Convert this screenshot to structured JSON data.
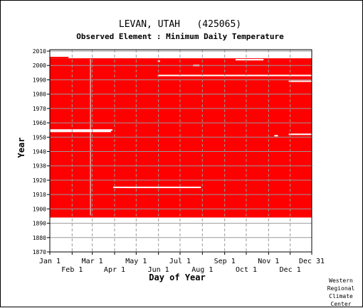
{
  "chart_data": {
    "type": "heatmap",
    "title": "LEVAN, UTAH   (425065)",
    "subtitle": "Observed Element : Minimum Daily Temperature",
    "xlabel": "Day of Year",
    "ylabel": "Year",
    "xlim": [
      1,
      365
    ],
    "ylim": [
      1870,
      2011
    ],
    "y_ticks": [
      1870,
      1880,
      1890,
      1900,
      1910,
      1920,
      1930,
      1940,
      1950,
      1960,
      1970,
      1980,
      1990,
      2000,
      2010
    ],
    "x_ticks_top": [
      {
        "label": "Jan 1",
        "day": 1
      },
      {
        "label": "Mar 1",
        "day": 60
      },
      {
        "label": "May 1",
        "day": 121
      },
      {
        "label": "Jul 1",
        "day": 182
      },
      {
        "label": "Sep 1",
        "day": 244
      },
      {
        "label": "Nov 1",
        "day": 305
      },
      {
        "label": "Dec 31",
        "day": 365
      }
    ],
    "x_ticks_bottom": [
      {
        "label": "Feb 1",
        "day": 32
      },
      {
        "label": "Apr 1",
        "day": 91
      },
      {
        "label": "Jun 1",
        "day": 152
      },
      {
        "label": "Aug 1",
        "day": 213
      },
      {
        "label": "Oct 1",
        "day": 274
      },
      {
        "label": "Dec 1",
        "day": 335
      }
    ],
    "grid": true,
    "data_color": "#ff0000",
    "missing_color": "#ffffff",
    "records_present": [
      {
        "years": [
          1894,
          1895
        ],
        "days": [
          1,
          89
        ]
      },
      {
        "years": [
          1894,
          2005
        ],
        "days": [
          1,
          365
        ]
      },
      {
        "years": [
          2005,
          2006
        ],
        "days": [
          1,
          27
        ]
      }
    ],
    "records_missing": [
      {
        "years": [
          1955,
          1955
        ],
        "days": [
          1,
          88
        ]
      },
      {
        "years": [
          1954,
          1954
        ],
        "days": [
          1,
          86
        ]
      },
      {
        "years": [
          1915,
          1915
        ],
        "days": [
          89,
          211
        ]
      },
      {
        "years": [
          1993,
          1993
        ],
        "days": [
          151,
          365
        ]
      },
      {
        "years": [
          1989,
          1989
        ],
        "days": [
          333,
          365
        ]
      },
      {
        "years": [
          1952,
          1952
        ],
        "days": [
          333,
          365
        ]
      },
      {
        "years": [
          2004,
          2004
        ],
        "days": [
          259,
          298
        ]
      },
      {
        "years": [
          2003,
          2003
        ],
        "days": [
          151,
          154
        ]
      },
      {
        "years": [
          2000,
          2000
        ],
        "days": [
          200,
          209
        ]
      },
      {
        "years": [
          1896,
          2004
        ],
        "days": [
          57,
          57
        ]
      },
      {
        "years": [
          1951,
          1951
        ],
        "days": [
          313,
          318
        ]
      }
    ]
  },
  "credit": [
    "Western",
    "Regional",
    "Climate",
    "Center"
  ]
}
